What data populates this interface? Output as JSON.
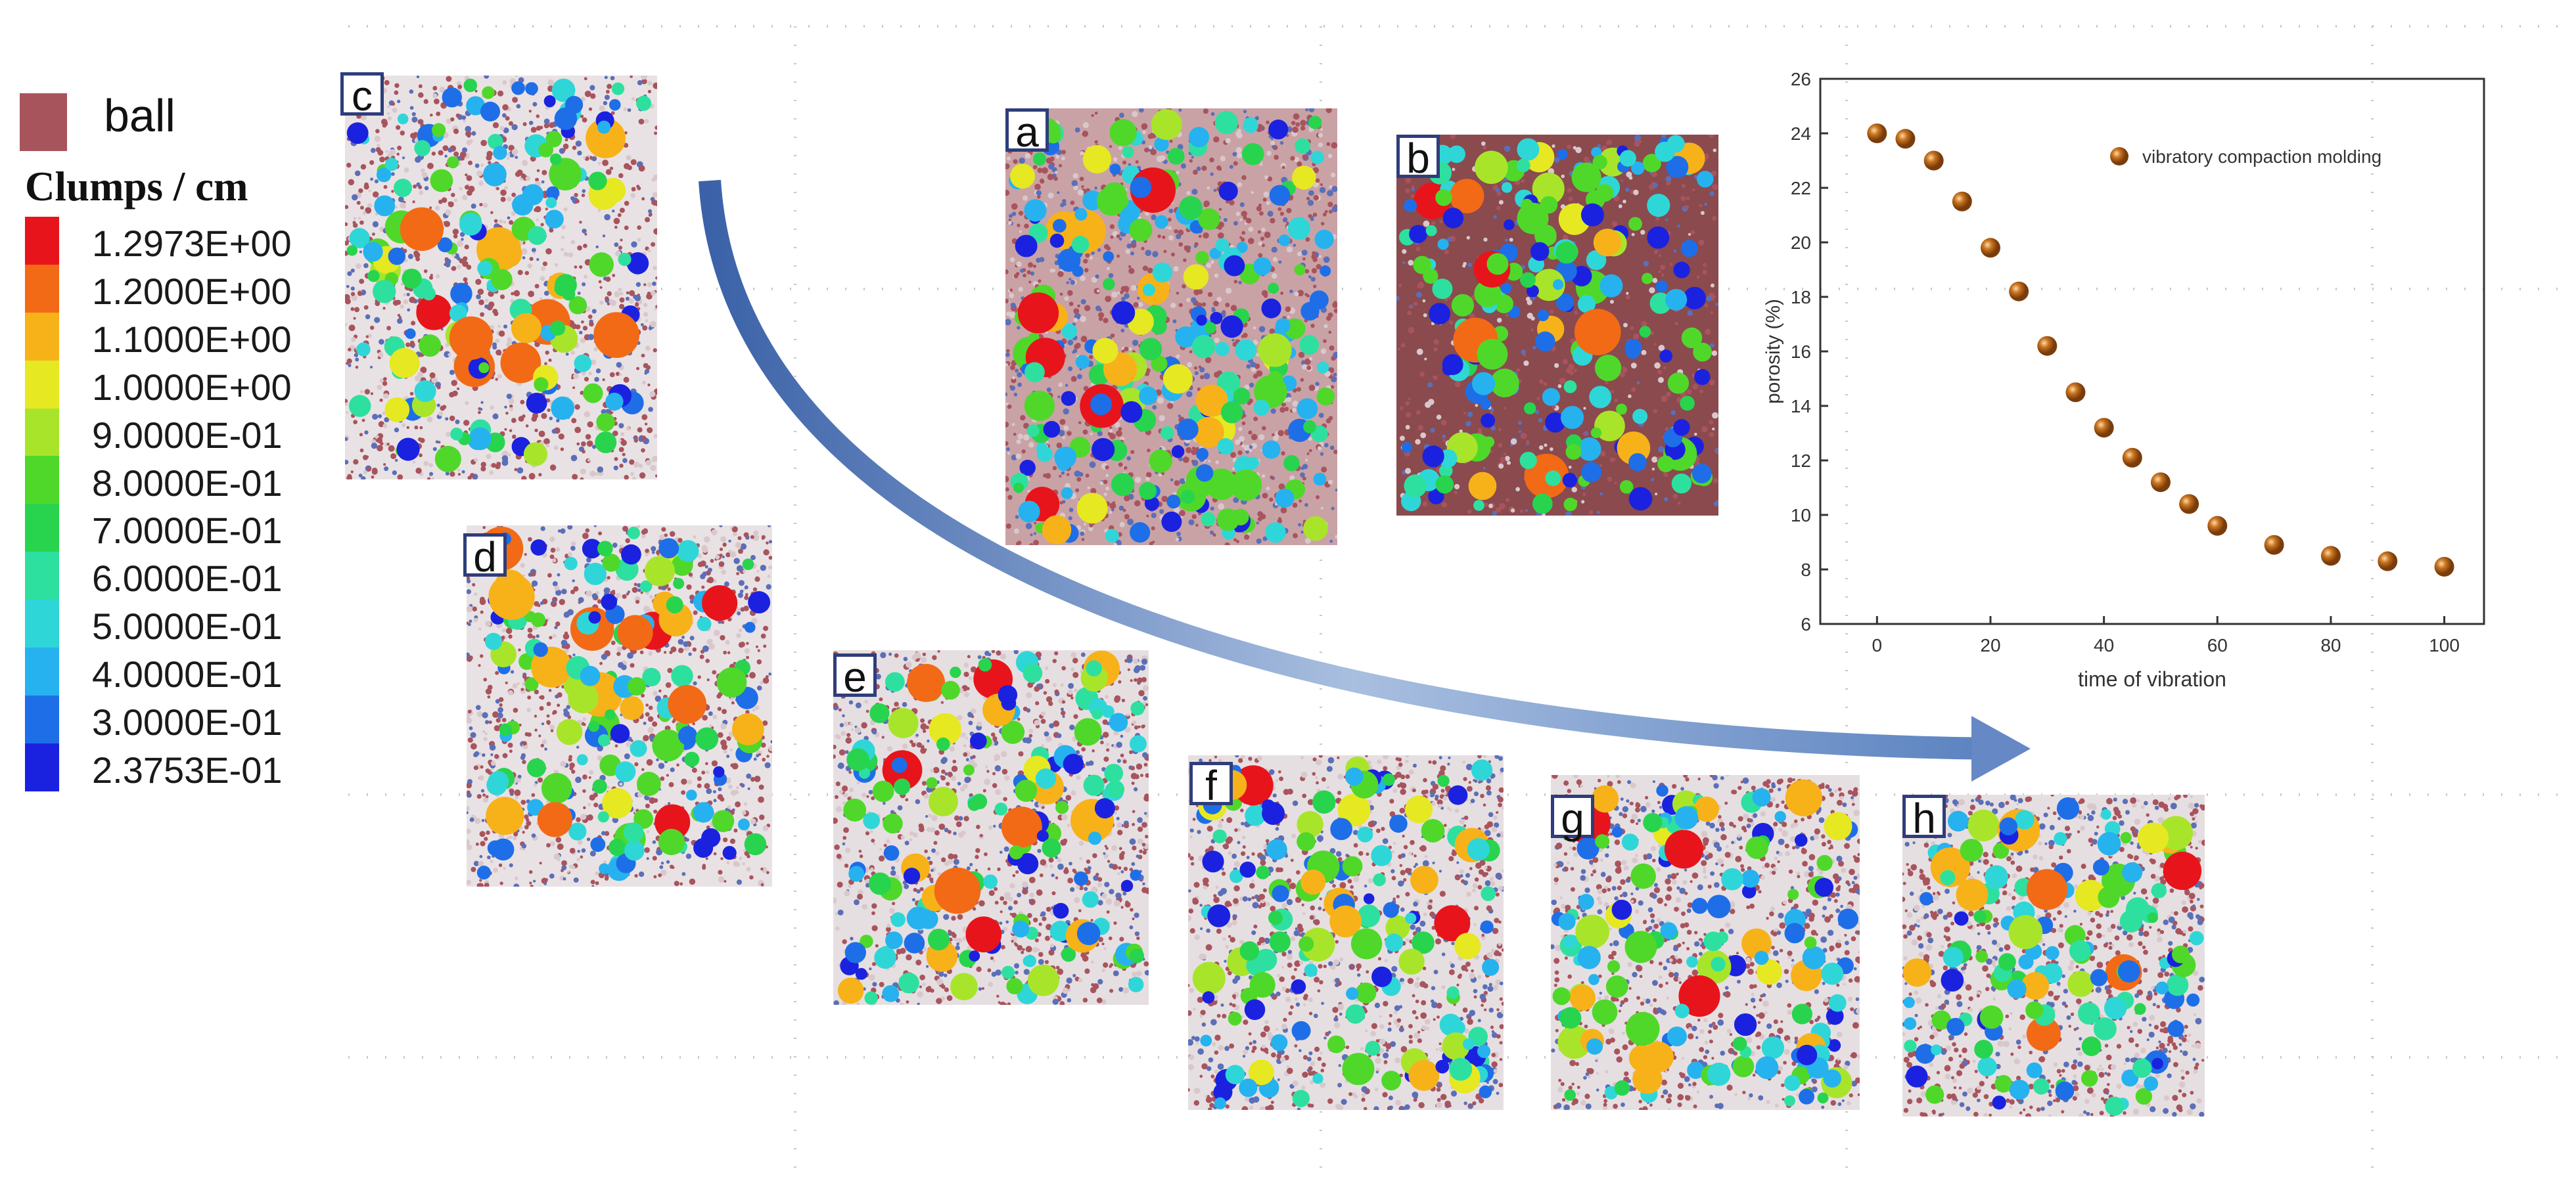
{
  "legend": {
    "ball_label": "ball",
    "title": "Clumps / cm",
    "ticks": [
      "1.2973E+00",
      "1.2000E+00",
      "1.1000E+00",
      "1.0000E+00",
      "9.0000E-01",
      "8.0000E-01",
      "7.0000E-01",
      "6.0000E-01",
      "5.0000E-01",
      "4.0000E-01",
      "3.0000E-01",
      "2.3753E-01"
    ],
    "colors": [
      "#e8141b",
      "#f26a16",
      "#f7b21a",
      "#e6e822",
      "#a8e52a",
      "#4fd82a",
      "#28d44e",
      "#2ee0a0",
      "#2fd6d8",
      "#26b2ee",
      "#1e6ee8",
      "#1a22e0"
    ],
    "ball_color": "#a8545d"
  },
  "panels": {
    "a": "a",
    "b": "b",
    "c": "c",
    "d": "d",
    "e": "e",
    "f": "f",
    "g": "g",
    "h": "h"
  },
  "chart_data": {
    "type": "scatter",
    "xlabel": "time of vibration",
    "ylabel": "porosity (%)",
    "xlim": [
      -10,
      107
    ],
    "ylim": [
      6,
      26
    ],
    "xticks": [
      0,
      20,
      40,
      60,
      80,
      100
    ],
    "yticks": [
      6,
      8,
      10,
      12,
      14,
      16,
      18,
      20,
      22,
      24,
      26
    ],
    "legend_position": "top-right",
    "grid": false,
    "series": [
      {
        "name": "vibratory compaction molding",
        "color": "#c8741f",
        "x": [
          0,
          5,
          10,
          15,
          20,
          25,
          30,
          35,
          40,
          45,
          50,
          55,
          60,
          70,
          80,
          90,
          100
        ],
        "y": [
          24.0,
          23.8,
          23.0,
          21.5,
          19.8,
          18.2,
          16.2,
          14.5,
          13.2,
          12.1,
          11.2,
          10.4,
          9.6,
          8.9,
          8.5,
          8.3,
          8.1
        ]
      }
    ]
  }
}
